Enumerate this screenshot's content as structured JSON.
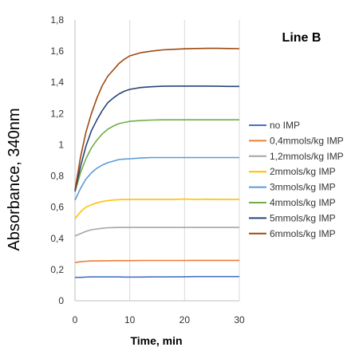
{
  "chart_data": {
    "type": "line",
    "title": "Line B",
    "xlabel": "Time, min",
    "ylabel": "Absorbance, 340nm",
    "xlim": [
      0,
      30
    ],
    "ylim": [
      0,
      1.8
    ],
    "xticks": [
      "0",
      "10",
      "20",
      "30"
    ],
    "yticks": [
      "0",
      "0,2",
      "0,4",
      "0,6",
      "0,8",
      "1",
      "1,2",
      "1,4",
      "1,6",
      "1,8"
    ],
    "grid": {
      "x": true,
      "y": false
    },
    "legend_position": "right",
    "x": [
      0,
      1,
      2,
      3,
      4,
      5,
      6,
      7,
      8,
      9,
      10,
      12,
      14,
      16,
      18,
      20,
      22,
      24,
      26,
      28,
      30
    ],
    "series": [
      {
        "name": "no IMP",
        "color": "#4472C4",
        "values": [
          0.15,
          0.15,
          0.152,
          0.153,
          0.153,
          0.153,
          0.153,
          0.153,
          0.153,
          0.152,
          0.152,
          0.152,
          0.153,
          0.153,
          0.153,
          0.154,
          0.155,
          0.155,
          0.155,
          0.155,
          0.155
        ]
      },
      {
        "name": "0,4mmols/kg IMP",
        "color": "#ED7D31",
        "values": [
          0.245,
          0.25,
          0.253,
          0.255,
          0.255,
          0.256,
          0.256,
          0.257,
          0.257,
          0.257,
          0.257,
          0.258,
          0.258,
          0.258,
          0.258,
          0.258,
          0.259,
          0.259,
          0.259,
          0.259,
          0.259
        ]
      },
      {
        "name": "1,2mmols/kg IMP",
        "color": "#A5A5A5",
        "values": [
          0.415,
          0.43,
          0.445,
          0.455,
          0.46,
          0.465,
          0.468,
          0.469,
          0.47,
          0.47,
          0.47,
          0.47,
          0.47,
          0.47,
          0.47,
          0.47,
          0.47,
          0.47,
          0.47,
          0.47,
          0.47
        ]
      },
      {
        "name": "2mmols/kg IMP",
        "color": "#FFC000",
        "values": [
          0.525,
          0.57,
          0.6,
          0.615,
          0.628,
          0.636,
          0.642,
          0.646,
          0.648,
          0.649,
          0.65,
          0.65,
          0.65,
          0.65,
          0.65,
          0.652,
          0.65,
          0.651,
          0.65,
          0.65,
          0.65
        ]
      },
      {
        "name": "3mmols/kg IMP",
        "color": "#5B9BD5",
        "values": [
          0.645,
          0.72,
          0.78,
          0.82,
          0.85,
          0.87,
          0.885,
          0.895,
          0.905,
          0.908,
          0.91,
          0.915,
          0.918,
          0.918,
          0.918,
          0.918,
          0.918,
          0.918,
          0.918,
          0.918,
          0.918
        ]
      },
      {
        "name": "4mmols/kg IMP",
        "color": "#70AD47",
        "values": [
          0.7,
          0.82,
          0.91,
          0.98,
          1.03,
          1.07,
          1.1,
          1.12,
          1.135,
          1.143,
          1.15,
          1.155,
          1.158,
          1.16,
          1.16,
          1.16,
          1.16,
          1.16,
          1.16,
          1.16,
          1.16
        ]
      },
      {
        "name": "5mmols/kg IMP",
        "color": "#264478",
        "values": [
          0.7,
          0.86,
          0.99,
          1.09,
          1.16,
          1.22,
          1.27,
          1.3,
          1.325,
          1.343,
          1.355,
          1.367,
          1.372,
          1.375,
          1.376,
          1.376,
          1.376,
          1.376,
          1.375,
          1.374,
          1.374
        ]
      },
      {
        "name": "6mmols/kg IMP",
        "color": "#9E480E",
        "values": [
          0.71,
          0.92,
          1.08,
          1.2,
          1.3,
          1.38,
          1.44,
          1.48,
          1.52,
          1.548,
          1.57,
          1.59,
          1.6,
          1.608,
          1.612,
          1.615,
          1.617,
          1.618,
          1.618,
          1.617,
          1.616
        ]
      }
    ]
  }
}
